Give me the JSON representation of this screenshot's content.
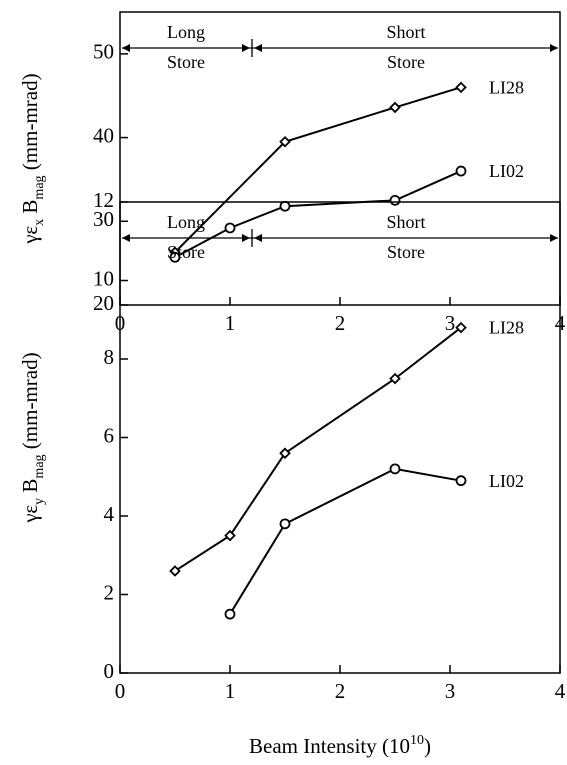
{
  "chart_data": [
    {
      "type": "line",
      "ylabel": [
        "γε",
        "x",
        " B",
        "mag",
        "  (mm-mrad)"
      ],
      "annotations": [
        "Long",
        "Store",
        "Short",
        "Store"
      ],
      "xlim": [
        0,
        4
      ],
      "xticks": [
        0,
        1,
        2,
        3,
        4
      ],
      "ylim": [
        20,
        55
      ],
      "yticks": [
        20,
        30,
        40,
        50
      ],
      "series": [
        {
          "name": "LI28",
          "color": "#000000",
          "marker": "diamond",
          "x": [
            0.5,
            1.5,
            2.5,
            3.1
          ],
          "values": [
            26.3,
            39.5,
            43.6,
            46
          ]
        },
        {
          "name": "LI02",
          "color": "#000000",
          "marker": "circle",
          "x": [
            0.5,
            1.0,
            1.5,
            2.5,
            3.1
          ],
          "values": [
            25.7,
            29.2,
            31.8,
            32.5,
            36
          ]
        }
      ]
    },
    {
      "type": "line",
      "ylabel": [
        "γε",
        "y",
        " B",
        "mag",
        "  (mm-mrad)"
      ],
      "xlabel": [
        "Beam Intensity (10",
        "10",
        ")"
      ],
      "annotations": [
        "Long",
        "Store",
        "Short",
        "Store"
      ],
      "xlim": [
        0,
        4
      ],
      "xticks": [
        0,
        1,
        2,
        3,
        4
      ],
      "ylim": [
        0,
        12
      ],
      "yticks": [
        0,
        2,
        4,
        6,
        8,
        10,
        12
      ],
      "series": [
        {
          "name": "LI28",
          "color": "#000000",
          "marker": "diamond",
          "x": [
            0.5,
            1.0,
            1.5,
            2.5,
            3.1
          ],
          "values": [
            2.6,
            3.5,
            5.6,
            7.5,
            8.8
          ]
        },
        {
          "name": "LI02",
          "color": "#000000",
          "marker": "circle",
          "x": [
            1.0,
            1.5,
            2.5,
            3.1
          ],
          "values": [
            1.5,
            3.8,
            5.2,
            4.9
          ]
        }
      ]
    }
  ]
}
